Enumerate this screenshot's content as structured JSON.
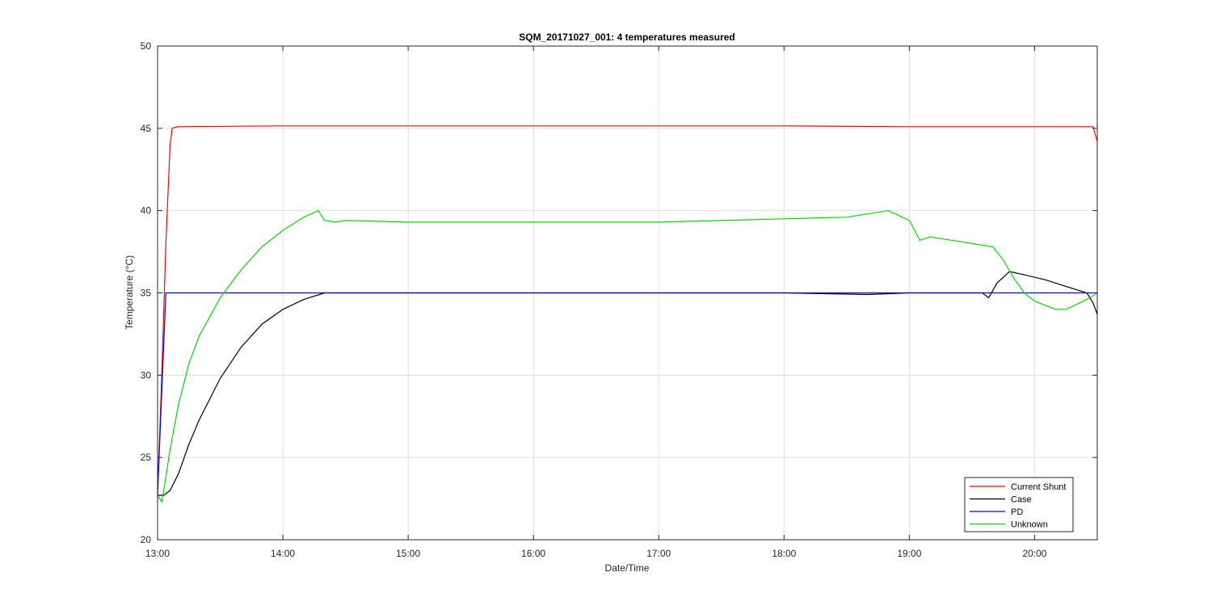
{
  "chart_data": {
    "type": "line",
    "title": "SQM_20171027_001: 4 temperatures measured",
    "xlabel": "Date/Time",
    "ylabel": "Temperature (°C)",
    "xlim": [
      "13:00",
      "20:30"
    ],
    "ylim": [
      20,
      50
    ],
    "xticks": [
      "13:00",
      "14:00",
      "15:00",
      "16:00",
      "17:00",
      "18:00",
      "19:00",
      "20:00"
    ],
    "yticks": [
      20,
      25,
      30,
      35,
      40,
      45,
      50
    ],
    "grid": true,
    "legend_position": "bottom-right",
    "series": [
      {
        "name": "Current Shunt",
        "color": "#ff0000",
        "x": [
          "13:00",
          "13:02",
          "13:04",
          "13:06",
          "13:07",
          "13:08",
          "13:10",
          "14:00",
          "15:00",
          "16:00",
          "17:00",
          "18:00",
          "19:00",
          "20:00",
          "20:28",
          "20:30"
        ],
        "y": [
          22.7,
          30.0,
          38.0,
          44.0,
          45.0,
          45.05,
          45.1,
          45.15,
          45.15,
          45.15,
          45.15,
          45.15,
          45.1,
          45.1,
          45.1,
          44.2
        ]
      },
      {
        "name": "Case",
        "color": "#000000",
        "x": [
          "13:00",
          "13:03",
          "13:06",
          "13:10",
          "13:15",
          "13:20",
          "13:30",
          "13:40",
          "13:50",
          "14:00",
          "14:10",
          "14:20",
          "14:30",
          "15:00",
          "16:00",
          "17:00",
          "18:00",
          "18:40",
          "19:00",
          "19:20",
          "19:35",
          "19:38",
          "19:42",
          "19:48",
          "19:55",
          "20:05",
          "20:15",
          "20:25",
          "20:28",
          "20:30"
        ],
        "y": [
          22.7,
          22.7,
          23.0,
          24.0,
          25.8,
          27.3,
          29.8,
          31.7,
          33.1,
          34.0,
          34.6,
          35.0,
          35.0,
          35.0,
          35.0,
          35.0,
          35.0,
          34.9,
          35.0,
          35.0,
          35.0,
          34.7,
          35.6,
          36.3,
          36.1,
          35.8,
          35.4,
          35.0,
          34.4,
          33.7
        ]
      },
      {
        "name": "PD",
        "color": "#0000ff",
        "x": [
          "13:00",
          "13:02",
          "13:04",
          "13:06",
          "14:00",
          "15:00",
          "16:00",
          "17:00",
          "18:00",
          "19:00",
          "19:40",
          "20:00",
          "20:30"
        ],
        "y": [
          22.7,
          29.0,
          35.0,
          35.0,
          35.0,
          35.0,
          35.0,
          35.0,
          35.0,
          35.0,
          35.0,
          35.0,
          35.0
        ]
      },
      {
        "name": "Unknown",
        "color": "#00dd00",
        "x": [
          "13:00",
          "13:02",
          "13:04",
          "13:06",
          "13:10",
          "13:15",
          "13:20",
          "13:30",
          "13:40",
          "13:50",
          "14:00",
          "14:10",
          "14:17",
          "14:20",
          "14:25",
          "14:30",
          "15:00",
          "16:00",
          "17:00",
          "17:30",
          "18:00",
          "18:30",
          "18:50",
          "18:55",
          "19:00",
          "19:05",
          "19:10",
          "19:20",
          "19:30",
          "19:40",
          "19:45",
          "19:50",
          "19:55",
          "20:00",
          "20:10",
          "20:15",
          "20:20",
          "20:25",
          "20:30"
        ],
        "y": [
          22.7,
          22.3,
          23.8,
          25.5,
          28.2,
          30.7,
          32.4,
          34.7,
          36.4,
          37.8,
          38.8,
          39.6,
          40.0,
          39.4,
          39.3,
          39.4,
          39.3,
          39.3,
          39.3,
          39.4,
          39.5,
          39.6,
          40.0,
          39.7,
          39.4,
          38.2,
          38.4,
          38.2,
          38.0,
          37.8,
          37.0,
          35.9,
          35.0,
          34.5,
          34.0,
          34.0,
          34.3,
          34.6,
          35.0
        ]
      }
    ]
  }
}
